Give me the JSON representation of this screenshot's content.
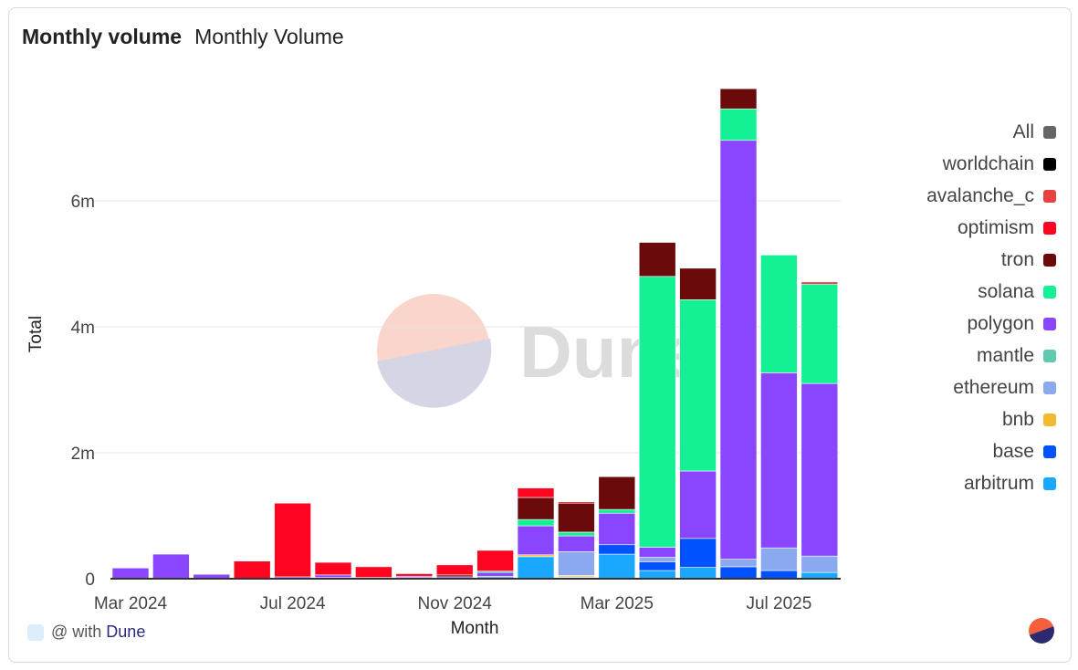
{
  "header": {
    "title": "Monthly volume",
    "subtitle": "Monthly Volume"
  },
  "footer": {
    "prefix": "@ with",
    "brand": "Dune"
  },
  "watermark": "Dune",
  "chart_data": {
    "type": "bar",
    "stacked": true,
    "xlabel": "Month",
    "ylabel": "Total",
    "ylim": [
      0,
      7800000
    ],
    "yticks": [
      {
        "v": 0,
        "label": "0"
      },
      {
        "v": 2000000,
        "label": "2m"
      },
      {
        "v": 4000000,
        "label": "4m"
      },
      {
        "v": 6000000,
        "label": "6m"
      }
    ],
    "xticks": [
      {
        "i": 0,
        "label": "Mar 2024"
      },
      {
        "i": 4,
        "label": "Jul 2024"
      },
      {
        "i": 8,
        "label": "Nov 2024"
      },
      {
        "i": 12,
        "label": "Mar 2025"
      },
      {
        "i": 16,
        "label": "Jul 2025"
      }
    ],
    "categories": [
      "2024-03",
      "2024-04",
      "2024-05",
      "2024-06",
      "2024-07",
      "2024-08",
      "2024-09",
      "2024-10",
      "2024-11",
      "2024-12",
      "2025-01",
      "2025-02",
      "2025-03",
      "2025-04",
      "2025-05",
      "2025-06",
      "2025-07",
      "2025-08"
    ],
    "legend": [
      {
        "name": "All",
        "color": "#666666"
      },
      {
        "name": "worldchain",
        "color": "#000000"
      },
      {
        "name": "avalanche_c",
        "color": "#e84142"
      },
      {
        "name": "optimism",
        "color": "#ff0420"
      },
      {
        "name": "tron",
        "color": "#6b0a0a"
      },
      {
        "name": "solana",
        "color": "#14f195"
      },
      {
        "name": "polygon",
        "color": "#8a46ff"
      },
      {
        "name": "mantle",
        "color": "#5fcbae"
      },
      {
        "name": "ethereum",
        "color": "#8aa9ee"
      },
      {
        "name": "bnb",
        "color": "#f3ba2f"
      },
      {
        "name": "base",
        "color": "#0052ff"
      },
      {
        "name": "arbitrum",
        "color": "#1aa8ff"
      }
    ],
    "series": [
      {
        "name": "arbitrum",
        "color": "#1aa8ff",
        "values": [
          0,
          0,
          0,
          0,
          0,
          0,
          0,
          0,
          0,
          0.01,
          0.35,
          0.02,
          0.39,
          0.13,
          0.18,
          0,
          0.01,
          0.1
        ]
      },
      {
        "name": "base",
        "color": "#0052ff",
        "values": [
          0,
          0,
          0,
          0,
          0,
          0,
          0,
          0,
          0.01,
          0,
          0,
          0.01,
          0.15,
          0.14,
          0.46,
          0.19,
          0.12,
          0
        ]
      },
      {
        "name": "bnb",
        "color": "#f3ba2f",
        "values": [
          0,
          0,
          0,
          0,
          0,
          0.01,
          0,
          0,
          0,
          0,
          0.03,
          0.02,
          0,
          0,
          0,
          0,
          0,
          0
        ]
      },
      {
        "name": "ethereum",
        "color": "#8aa9ee",
        "values": [
          0,
          0,
          0,
          0,
          0.01,
          0.01,
          0,
          0.02,
          0,
          0.03,
          0,
          0.38,
          0,
          0.07,
          0,
          0.12,
          0.36,
          0.26
        ]
      },
      {
        "name": "polygon",
        "color": "#8a46ff",
        "values": [
          0.17,
          0.39,
          0.07,
          0,
          0.02,
          0.04,
          0.02,
          0.02,
          0.02,
          0.06,
          0.46,
          0.25,
          0.5,
          0.16,
          1.07,
          6.65,
          2.78,
          2.74
        ]
      },
      {
        "name": "solana",
        "color": "#14f195",
        "values": [
          0,
          0,
          0,
          0,
          0,
          0,
          0,
          0,
          0,
          0.02,
          0.1,
          0.06,
          0.06,
          4.3,
          2.72,
          0.5,
          1.87,
          1.58
        ]
      },
      {
        "name": "tron",
        "color": "#6b0a0a",
        "values": [
          0,
          0,
          0,
          0,
          0,
          0,
          0,
          0,
          0.03,
          0,
          0.35,
          0.46,
          0.52,
          0.54,
          0.5,
          0.32,
          0,
          0
        ]
      },
      {
        "name": "optimism",
        "color": "#ff0420",
        "values": [
          0,
          0,
          0,
          0.28,
          1.17,
          0.2,
          0.17,
          0.04,
          0.16,
          0.33,
          0.15,
          0.02,
          0,
          0,
          0,
          0,
          0,
          0.03
        ]
      }
    ],
    "unit": "millions"
  }
}
